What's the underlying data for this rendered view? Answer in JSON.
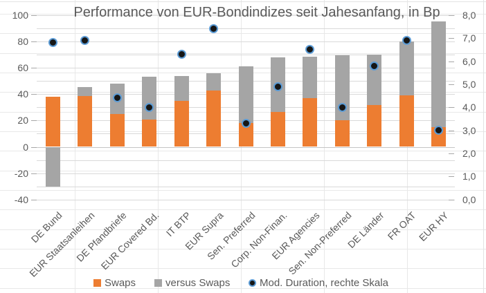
{
  "chart_data": {
    "type": "combo-stacked-bar-scatter",
    "title": "Performance von EUR-Bondindizes seit Jahesanfang, in Bp",
    "categories": [
      "DE Bund",
      "EUR Staatsanleihen",
      "DE Pfandbriefe",
      "EUR Covered Bd.",
      "IT BTP",
      "EUR Supra",
      "Sen. Preferred",
      "Corp. Non-Finan.",
      "EUR Agencies",
      "Sen. Non-Preferred",
      "DE Länder",
      "FR OAT",
      "EUR HY"
    ],
    "series": [
      {
        "name": "Swaps",
        "type": "bar-stacked",
        "axis": "left",
        "color": "#ED7D31",
        "values": [
          38,
          38.5,
          25,
          20.5,
          35,
          42.5,
          18,
          26.5,
          37,
          20,
          31.5,
          39,
          15
        ]
      },
      {
        "name": "versus Swaps",
        "type": "bar-stacked",
        "axis": "left",
        "color": "#A5A5A5",
        "values": [
          -30,
          7,
          23,
          32.5,
          18.5,
          13.5,
          43,
          41.5,
          31.5,
          49.5,
          38.5,
          41,
          80
        ]
      },
      {
        "name": "Mod. Duration, rechte Skala",
        "type": "scatter",
        "axis": "right",
        "color": "#161616",
        "marker_ring": "#5B9BD5",
        "values": [
          6.8,
          6.9,
          4.4,
          4.0,
          6.3,
          7.4,
          3.3,
          4.9,
          6.5,
          4.0,
          5.8,
          6.9,
          3.0
        ]
      }
    ],
    "left_axis": {
      "ylim": [
        -40,
        100
      ],
      "major_step": 20,
      "minor_step": 10,
      "ticks": [
        100,
        80,
        60,
        40,
        20,
        0,
        -20,
        -40
      ]
    },
    "right_axis": {
      "ylim": [
        0,
        8
      ],
      "major_step": 1,
      "tick_labels": [
        "8,0",
        "7,0",
        "6,0",
        "5,0",
        "4,0",
        "3,0",
        "2,0",
        "1,0",
        "0,0"
      ]
    },
    "grid": true,
    "legend_position": "bottom",
    "legend": [
      {
        "label": "Swaps",
        "marker": "square",
        "color": "#ED7D31"
      },
      {
        "label": "versus Swaps",
        "marker": "square",
        "color": "#A5A5A5"
      },
      {
        "label": "Mod. Duration, rechte Skala",
        "marker": "dot",
        "color": "#161616",
        "ring": "#5B9BD5"
      }
    ],
    "colors": {
      "gridline": "#d9d9d9",
      "cell_grid": "#e8e8e8",
      "axis_text": "#595959",
      "zero_line": "#c4c4c4"
    }
  }
}
